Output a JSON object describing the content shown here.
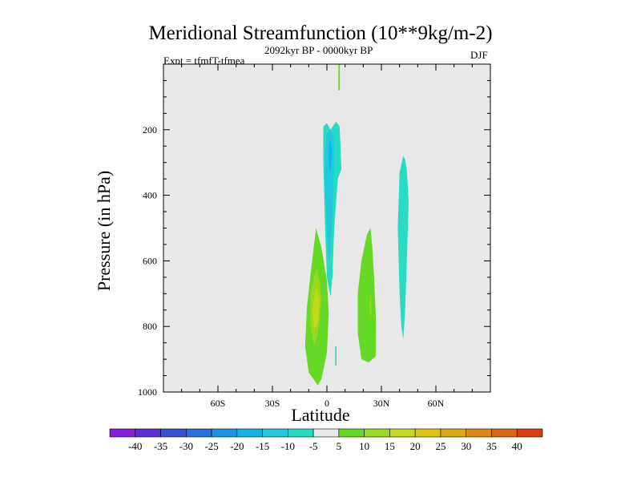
{
  "chart_data": {
    "type": "contour",
    "title": "Meridional Streamfunction (10**9kg/m-2)",
    "subtitle_left": "Expt = tfmfT-tfmea",
    "subtitle_center": "2092kyr BP - 0000kyr BP",
    "subtitle_right": "DJF",
    "xlabel": "Latitude",
    "ylabel": "Pressure (in hPa)",
    "xlim": [
      -90,
      90
    ],
    "ylim": [
      1000,
      0
    ],
    "xticks": [
      {
        "value": -60,
        "label": "60S"
      },
      {
        "value": -30,
        "label": "30S"
      },
      {
        "value": 0,
        "label": "0"
      },
      {
        "value": 30,
        "label": "30N"
      },
      {
        "value": 60,
        "label": "60N"
      }
    ],
    "yticks": [
      {
        "value": 200,
        "label": "200"
      },
      {
        "value": 400,
        "label": "400"
      },
      {
        "value": 600,
        "label": "600"
      },
      {
        "value": 800,
        "label": "800"
      },
      {
        "value": 1000,
        "label": "1000"
      }
    ],
    "background_color": "#e8e8e8",
    "contour_levels": [
      -40,
      -35,
      -30,
      -25,
      -20,
      -15,
      -10,
      -5,
      5,
      10,
      15,
      20,
      25,
      30,
      35,
      40
    ],
    "colorbar_colors": [
      "#8a1ee0",
      "#5a2ed8",
      "#3a4fd8",
      "#2570e0",
      "#1a94e8",
      "#10b4e8",
      "#20c8e0",
      "#28dcc4",
      "#e8e8e8",
      "#66d826",
      "#98d81e",
      "#c4d81c",
      "#dcc814",
      "#dca814",
      "#e08a14",
      "#e06414",
      "#dc3c10"
    ],
    "regions": [
      {
        "name": "sh-positive-cell",
        "color": "#66d826",
        "points": [
          [
            -5,
            980
          ],
          [
            -10,
            940
          ],
          [
            -12,
            860
          ],
          [
            -11,
            740
          ],
          [
            -9,
            640
          ],
          [
            -6,
            500
          ],
          [
            -3,
            560
          ],
          [
            0,
            660
          ],
          [
            1,
            760
          ],
          [
            0,
            880
          ],
          [
            -3,
            960
          ]
        ]
      },
      {
        "name": "sh-positive-core-15",
        "color": "#98d81e",
        "points": [
          [
            -6,
            620
          ],
          [
            -9,
            700
          ],
          [
            -9,
            800
          ],
          [
            -7,
            860
          ],
          [
            -5,
            820
          ],
          [
            -3,
            720
          ],
          [
            -4,
            660
          ]
        ]
      },
      {
        "name": "sh-positive-core-20",
        "color": "#c4d81c",
        "points": [
          [
            -6,
            680
          ],
          [
            -8,
            750
          ],
          [
            -7,
            810
          ],
          [
            -5,
            790
          ],
          [
            -4,
            720
          ]
        ]
      },
      {
        "name": "equatorial-negative-cell",
        "color": "#28dcc4",
        "points": [
          [
            -2,
            190
          ],
          [
            0,
            180
          ],
          [
            2,
            200
          ],
          [
            5,
            175
          ],
          [
            7,
            190
          ],
          [
            8,
            320
          ],
          [
            6,
            350
          ],
          [
            4,
            500
          ],
          [
            3,
            650
          ],
          [
            2,
            710
          ],
          [
            0,
            650
          ],
          [
            -1,
            500
          ],
          [
            -2,
            300
          ]
        ]
      },
      {
        "name": "equatorial-negative-core-10",
        "color": "#20c8e0",
        "points": [
          [
            0,
            210
          ],
          [
            2,
            200
          ],
          [
            4,
            230
          ],
          [
            4,
            300
          ],
          [
            3,
            460
          ],
          [
            2,
            570
          ],
          [
            1,
            600
          ],
          [
            0,
            520
          ],
          [
            -1,
            360
          ],
          [
            -1,
            260
          ]
        ]
      },
      {
        "name": "equatorial-negative-core-15",
        "color": "#10b4e8",
        "points": [
          [
            1,
            240
          ],
          [
            2,
            230
          ],
          [
            3,
            270
          ],
          [
            2,
            330
          ],
          [
            1,
            310
          ]
        ]
      },
      {
        "name": "nh-positive-cell",
        "color": "#66d826",
        "points": [
          [
            22,
            520
          ],
          [
            19,
            600
          ],
          [
            17,
            700
          ],
          [
            17,
            820
          ],
          [
            19,
            900
          ],
          [
            23,
            910
          ],
          [
            27,
            890
          ],
          [
            27,
            780
          ],
          [
            26,
            650
          ],
          [
            25,
            560
          ],
          [
            24,
            500
          ]
        ]
      },
      {
        "name": "nh-positive-core-15",
        "color": "#98d81e",
        "points": [
          [
            24,
            690
          ],
          [
            23.5,
            740
          ],
          [
            24,
            780
          ],
          [
            24.5,
            740
          ]
        ]
      },
      {
        "name": "nh-negative-cell",
        "color": "#28dcc4",
        "points": [
          [
            42,
            280
          ],
          [
            40,
            330
          ],
          [
            39,
            500
          ],
          [
            40,
            700
          ],
          [
            41,
            800
          ],
          [
            42,
            840
          ],
          [
            43,
            760
          ],
          [
            44,
            600
          ],
          [
            45,
            420
          ],
          [
            44,
            320
          ],
          [
            43,
            290
          ]
        ]
      },
      {
        "name": "equator-top-streak",
        "color": "#66d826",
        "points": [
          [
            6.3,
            0
          ],
          [
            7.1,
            0
          ],
          [
            7.1,
            80
          ],
          [
            6.3,
            80
          ]
        ]
      },
      {
        "name": "equator-bottom-streak",
        "color": "#28dcc4",
        "points": [
          [
            4.6,
            860
          ],
          [
            5.3,
            860
          ],
          [
            5.3,
            920
          ],
          [
            4.6,
            920
          ]
        ]
      }
    ]
  }
}
